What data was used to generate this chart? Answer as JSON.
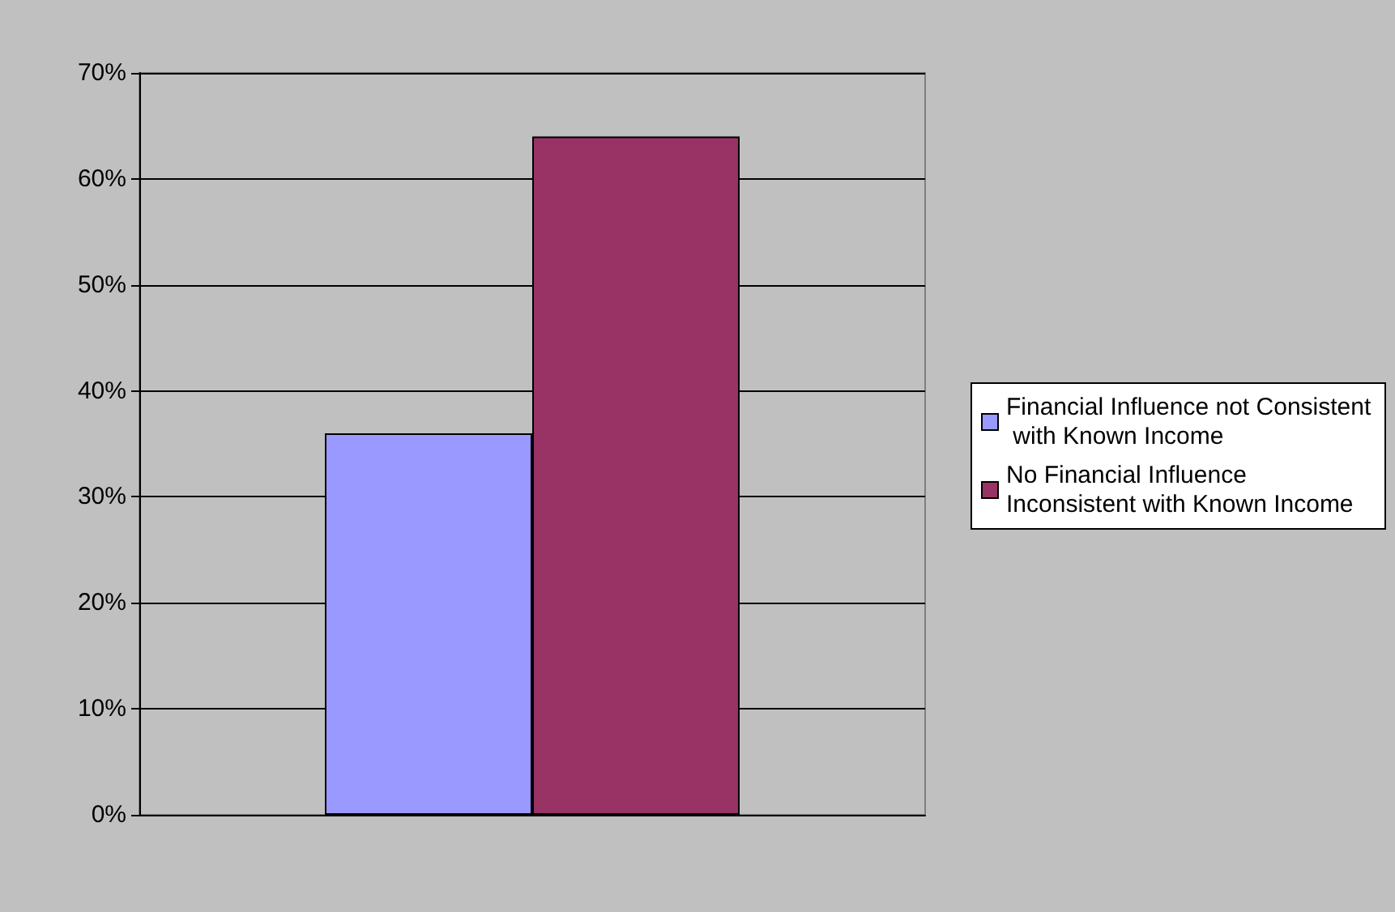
{
  "chart_data": {
    "type": "bar",
    "categories": [
      null
    ],
    "series": [
      {
        "name": "Financial Influence not Consistent with Known Income",
        "color": "#9999ff",
        "values": [
          36
        ]
      },
      {
        "name": "No Financial Influence Inconsistent with Known Income",
        "color": "#993366",
        "values": [
          64
        ]
      }
    ],
    "ylim": [
      0,
      70
    ],
    "yticks": [
      {
        "value": 0,
        "label": "0%"
      },
      {
        "value": 10,
        "label": "10%"
      },
      {
        "value": 20,
        "label": "20%"
      },
      {
        "value": 30,
        "label": "30%"
      },
      {
        "value": 40,
        "label": "40%"
      },
      {
        "value": 50,
        "label": "50%"
      },
      {
        "value": 60,
        "label": "60%"
      },
      {
        "value": 70,
        "label": "70%"
      }
    ],
    "grid": "y",
    "legend": "right"
  }
}
